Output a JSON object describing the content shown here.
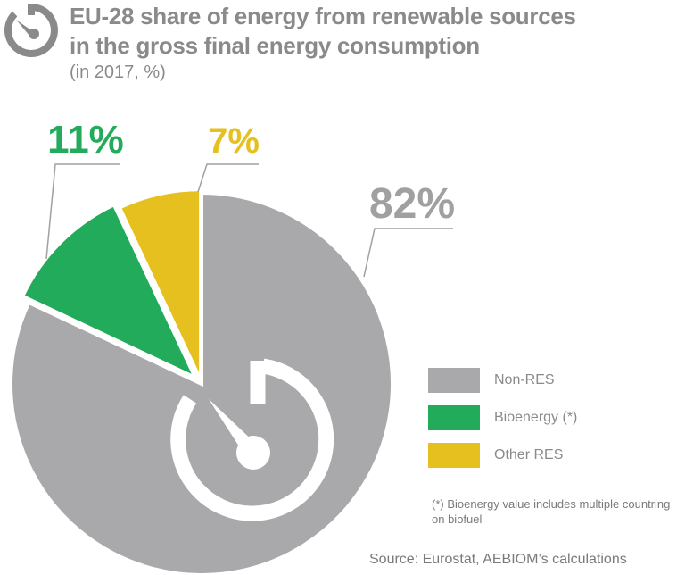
{
  "header": {
    "icon": "gauge-icon",
    "title_line1": "EU-28  share of energy from renewable sources",
    "title_line2": "in the gross final energy consumption",
    "subtitle": "(in 2017, %)"
  },
  "chart_data": {
    "type": "pie",
    "title": "EU-28  share of energy from renewable sources in the gross final energy consumption",
    "subtitle": "(in 2017, %)",
    "slices": [
      {
        "name": "Non-RES",
        "value": 82,
        "label": "82%",
        "color": "#a9a9ab"
      },
      {
        "name": "Bioenergy (*)",
        "value": 11,
        "label": "11%",
        "color": "#22ab5b"
      },
      {
        "name": "Other RES",
        "value": 7,
        "label": "7%",
        "color": "#e5c01f"
      }
    ],
    "legend_placement": "right"
  },
  "legend": {
    "items": [
      {
        "label": "Non-RES",
        "color": "#a9a9ab"
      },
      {
        "label": "Bioenergy (*)",
        "color": "#22ab5b"
      },
      {
        "label": "Other RES",
        "color": "#e5c01f"
      }
    ]
  },
  "note": "(*) Bioenergy value includes multiple countring on biofuel",
  "source": "Source: Eurostat, AEBIOM’s calculations",
  "colors": {
    "text": "#8a8a8a",
    "non_res": "#a9a9ab",
    "bioenergy": "#22ab5b",
    "other_res": "#e5c01f",
    "label_gray": "#a0a0a0"
  }
}
